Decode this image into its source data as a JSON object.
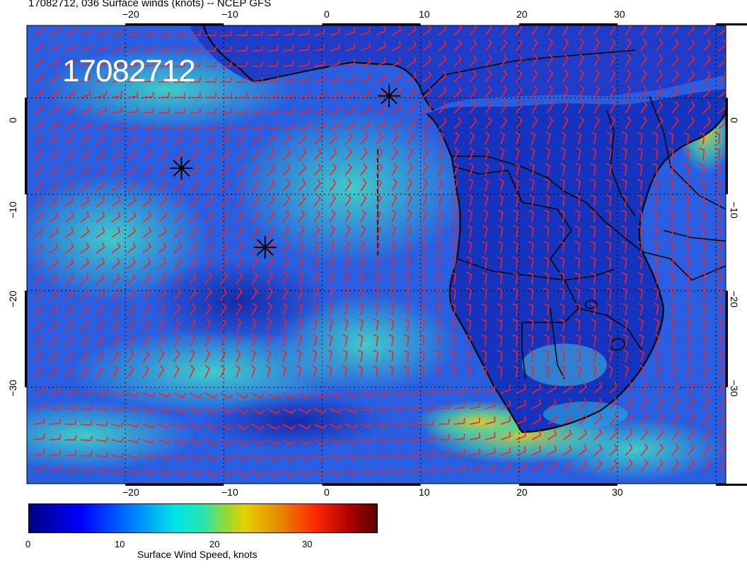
{
  "title": "17082712, 036 Surface winds (knots) -- NCEP GFS",
  "stamp": "17082712",
  "map": {
    "lon_range": [
      -30,
      41
    ],
    "lat_range": [
      -40,
      7.5
    ],
    "lon_ticks": [
      "−20",
      "−10",
      "0",
      "10",
      "20",
      "30"
    ],
    "lat_ticks": [
      "0",
      "−10",
      "−20",
      "−30"
    ],
    "barb_color": "#ff1e1e",
    "ocean_color": "#2a56d8",
    "markers": [
      {
        "name": "storm-1",
        "lon": 6.8,
        "lat": 0.2
      },
      {
        "name": "storm-2",
        "lon": -14.3,
        "lat": -7.3
      },
      {
        "name": "storm-3",
        "lon": -5.8,
        "lat": -15.5
      }
    ]
  },
  "colorbar": {
    "label": "Surface Wind Speed, knots",
    "ticks": [
      "0",
      "10",
      "20",
      "30"
    ],
    "range": [
      0,
      38
    ],
    "colors": [
      "#00007f",
      "#0000ff",
      "#0080ff",
      "#00e5e5",
      "#9ad830",
      "#e5d000",
      "#ff2a00",
      "#5a0000"
    ]
  }
}
